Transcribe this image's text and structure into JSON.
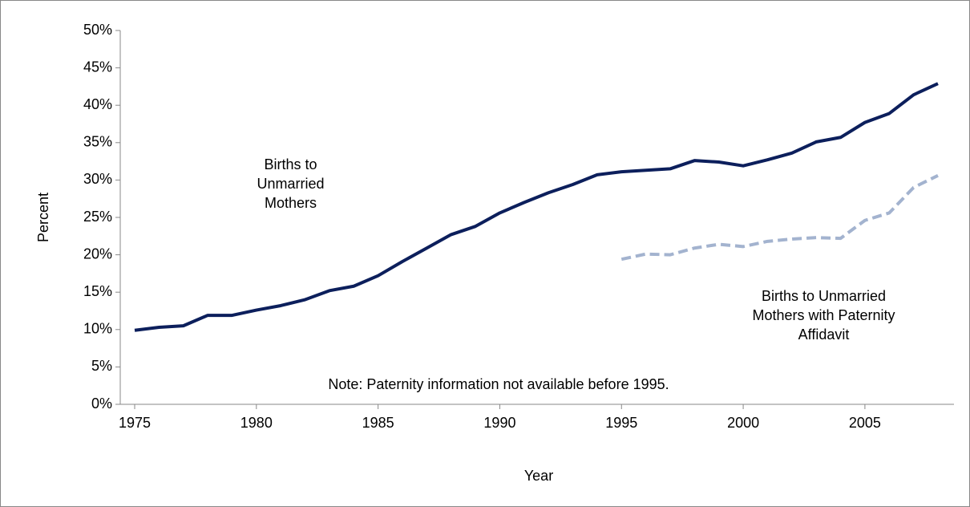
{
  "chart_data": {
    "type": "line",
    "x": [
      1975,
      1976,
      1977,
      1978,
      1979,
      1980,
      1981,
      1982,
      1983,
      1984,
      1985,
      1986,
      1987,
      1988,
      1989,
      1990,
      1991,
      1992,
      1993,
      1994,
      1995,
      1996,
      1997,
      1998,
      1999,
      2000,
      2001,
      2002,
      2003,
      2004,
      2005,
      2006,
      2007,
      2008
    ],
    "series": [
      {
        "name": "Births to Unmarried Mothers",
        "color": "#0c1f5c",
        "dashed": false,
        "values": [
          9.9,
          10.3,
          10.5,
          11.9,
          11.9,
          12.6,
          13.2,
          14.0,
          15.2,
          15.8,
          17.2,
          19.1,
          20.9,
          22.7,
          23.8,
          25.6,
          27.0,
          28.3,
          29.4,
          30.7,
          31.1,
          31.3,
          31.5,
          32.6,
          32.4,
          31.9,
          32.7,
          33.6,
          35.1,
          35.7,
          37.7,
          38.9,
          41.4,
          42.9
        ]
      },
      {
        "name": "Births to Unmarried Mothers with Paternity Affidavit",
        "color": "#a3b3cf",
        "dashed": true,
        "values": [
          null,
          null,
          null,
          null,
          null,
          null,
          null,
          null,
          null,
          null,
          null,
          null,
          null,
          null,
          null,
          null,
          null,
          null,
          null,
          null,
          19.4,
          20.1,
          20.0,
          20.9,
          21.4,
          21.1,
          21.8,
          22.1,
          22.3,
          22.2,
          24.6,
          25.6,
          29.0,
          30.6
        ]
      }
    ],
    "xlabel": "Year",
    "ylabel": "Percent",
    "annotation": "Note:  Paternity information not available before 1995.",
    "xlim": [
      1975,
      2008
    ],
    "xticks": [
      1975,
      1980,
      1985,
      1990,
      1995,
      2000,
      2005
    ],
    "ylim": [
      0,
      50
    ],
    "yticks": [
      {
        "value": 0,
        "label": "0%"
      },
      {
        "value": 5,
        "label": "5%"
      },
      {
        "value": 10,
        "label": "10%"
      },
      {
        "value": 15,
        "label": "15%"
      },
      {
        "value": 20,
        "label": "20%"
      },
      {
        "value": 25,
        "label": "25%"
      },
      {
        "value": 30,
        "label": "30%"
      },
      {
        "value": 35,
        "label": "35%"
      },
      {
        "value": 40,
        "label": "40%"
      },
      {
        "value": 45,
        "label": "45%"
      },
      {
        "value": 50,
        "label": "50%"
      }
    ],
    "grid": false
  }
}
